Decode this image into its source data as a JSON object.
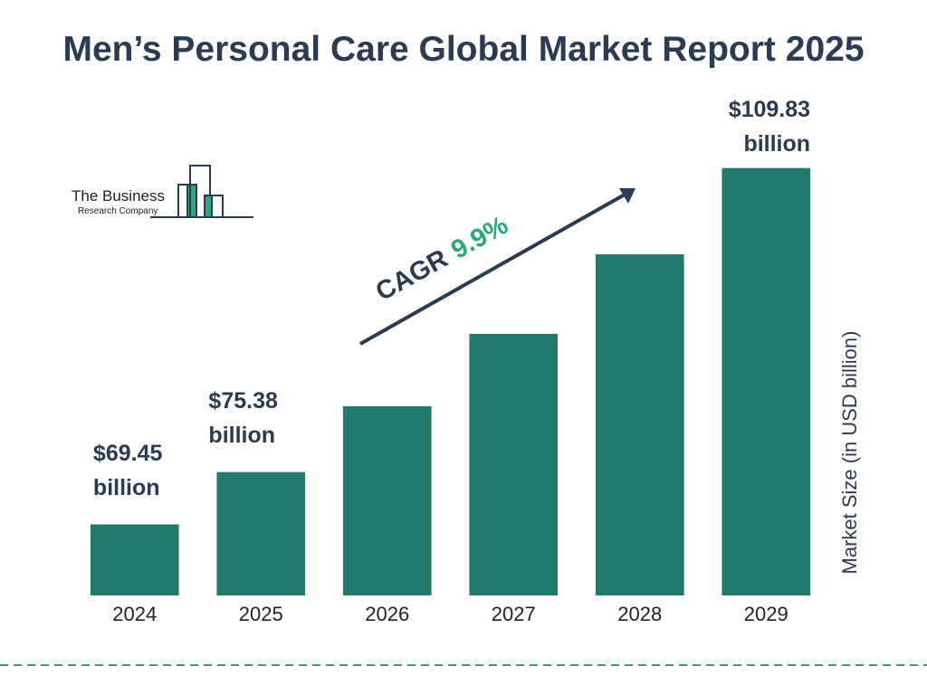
{
  "logo": {
    "name": "The Business",
    "subtitle": "Research Company"
  },
  "chart_data": {
    "type": "bar",
    "title": "Men’s Personal Care Global Market Report 2025",
    "y_axis_label": "Market Size (in USD billion)",
    "annotation": {
      "label": "CAGR",
      "value": "9.9%"
    },
    "categories": [
      "2024",
      "2025",
      "2026",
      "2027",
      "2028",
      "2029"
    ],
    "values": [
      69.45,
      75.38,
      82.84,
      91.04,
      100.05,
      109.83
    ],
    "value_labels": [
      "$69.45 billion",
      "$75.38 billion",
      null,
      null,
      null,
      "$109.83 billion"
    ],
    "color": "#237a6c",
    "ylim": [
      61.4,
      110
    ]
  }
}
